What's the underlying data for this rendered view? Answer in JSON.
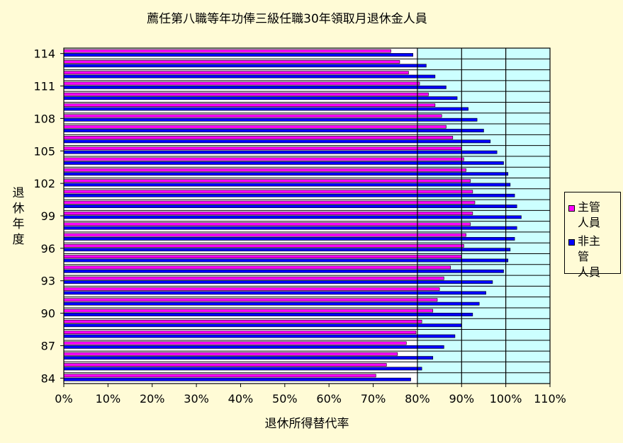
{
  "chart_data": {
    "type": "bar",
    "orientation": "horizontal",
    "title": "薦任第八職等年功俸三級任職30年領取月退休金人員",
    "xlabel": "退休所得替代率",
    "ylabel": "退休年度",
    "xlim": [
      0,
      110
    ],
    "xticks": [
      "0%",
      "10%",
      "20%",
      "30%",
      "40%",
      "50%",
      "60%",
      "70%",
      "80%",
      "90%",
      "100%",
      "110%"
    ],
    "categories": [
      "84",
      "85",
      "86",
      "87",
      "88",
      "89",
      "90",
      "91",
      "92",
      "93",
      "94",
      "95",
      "96",
      "97",
      "98",
      "99",
      "100",
      "101",
      "102",
      "103",
      "104",
      "105",
      "106",
      "107",
      "108",
      "109",
      "110",
      "111",
      "112",
      "113",
      "114"
    ],
    "ytick_labels": [
      "114",
      "111",
      "108",
      "105",
      "102",
      "99",
      "96",
      "93",
      "90",
      "87",
      "84"
    ],
    "series": [
      {
        "name": "主管人員",
        "color": "#ff00ff",
        "values": [
          70.6,
          73.0,
          75.5,
          77.5,
          79.7,
          81.0,
          83.5,
          84.5,
          85.0,
          86.0,
          87.5,
          90.0,
          90.5,
          91.0,
          92.0,
          92.5,
          93.0,
          92.5,
          92.0,
          91.0,
          90.5,
          90.0,
          88.0,
          86.5,
          85.5,
          84.0,
          82.5,
          80.5,
          78.0,
          76.0,
          74.0
        ]
      },
      {
        "name": "非主管人員",
        "color": "#0000ff",
        "values": [
          78.5,
          81.0,
          83.5,
          86.0,
          88.5,
          90.0,
          92.5,
          94.0,
          95.5,
          97.0,
          99.5,
          100.5,
          101.0,
          102.0,
          102.5,
          103.5,
          102.5,
          102.0,
          101.0,
          100.5,
          99.5,
          98.0,
          96.5,
          95.0,
          93.5,
          91.5,
          89.0,
          86.5,
          84.0,
          82.0,
          79.0
        ]
      }
    ],
    "highlight_from": 80,
    "highlight_color": "#ccffff",
    "plot_background": "#ffffff",
    "vertical_grid_at": [
      80,
      90,
      100
    ],
    "horizontal_grid": true,
    "legend_position": "right",
    "legend_labels": [
      {
        "line1": "主管",
        "line2": "人員"
      },
      {
        "line1": "非主管",
        "line2": "人員"
      }
    ]
  }
}
